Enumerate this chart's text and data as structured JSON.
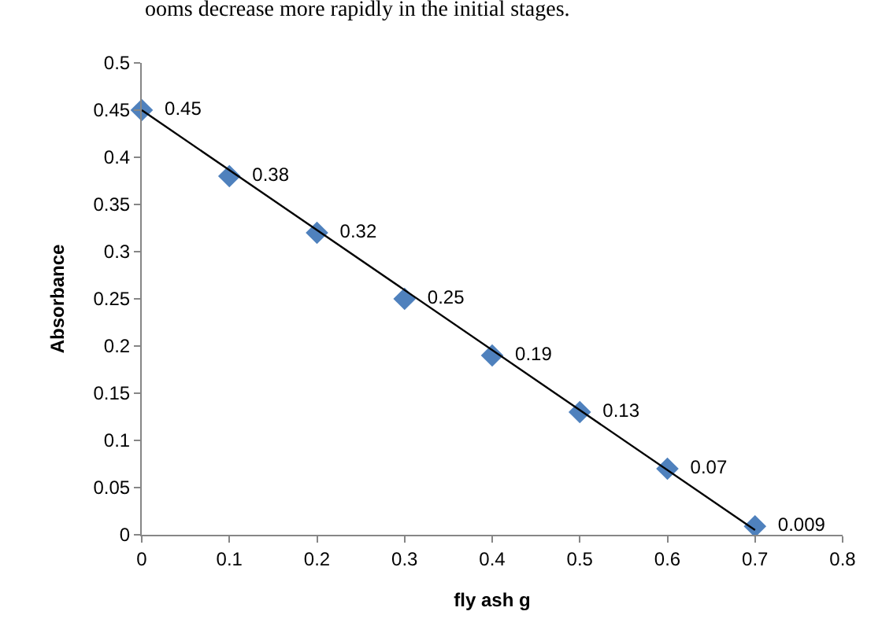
{
  "chart_data": {
    "type": "scatter",
    "xlabel": "fly ash g",
    "ylabel": "Absorbance",
    "annotations": [
      "ooms decrease more rapidly in the initial stages."
    ],
    "x": [
      0,
      0.1,
      0.2,
      0.3,
      0.4,
      0.5,
      0.6,
      0.7
    ],
    "series": [
      {
        "color": "#4f81bd",
        "marker": "diamond",
        "values": [
          0.45,
          0.38,
          0.32,
          0.25,
          0.19,
          0.13,
          0.07,
          0.009
        ],
        "data_labels": true
      },
      {
        "type": "line",
        "color": "#000000",
        "x": [
          0,
          0.7
        ],
        "values": [
          0.45,
          0.005
        ],
        "marker": "none",
        "line_style": "solid"
      }
    ],
    "xlim": [
      0,
      0.8
    ],
    "xticks": [
      0,
      0.1,
      0.2,
      0.3,
      0.4,
      0.5,
      0.6,
      0.7,
      0.8
    ],
    "ylim": [
      0,
      0.5
    ],
    "yticks": [
      0,
      0.05,
      0.1,
      0.15,
      0.2,
      0.25,
      0.3,
      0.35,
      0.4,
      0.45,
      0.5
    ]
  }
}
